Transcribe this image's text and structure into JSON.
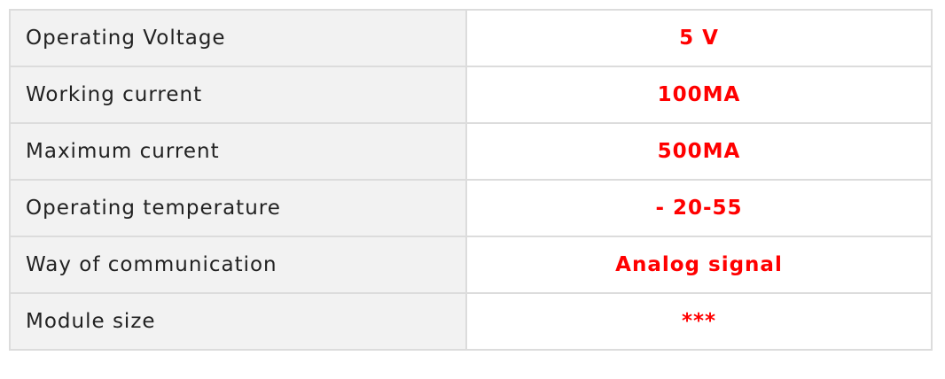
{
  "colors": {
    "value_text": "#ff0000",
    "label_bg": "#f2f2f2",
    "border": "#dcdcdc"
  },
  "rows": [
    {
      "label": "Operating Voltage",
      "value": "5 V"
    },
    {
      "label": "Working current",
      "value": "100MA"
    },
    {
      "label": "Maximum current",
      "value": "500MA"
    },
    {
      "label": "Operating temperature",
      "value": "- 20-55"
    },
    {
      "label": "Way of communication",
      "value": "Analog signal"
    },
    {
      "label": "Module size",
      "value": "***"
    }
  ]
}
